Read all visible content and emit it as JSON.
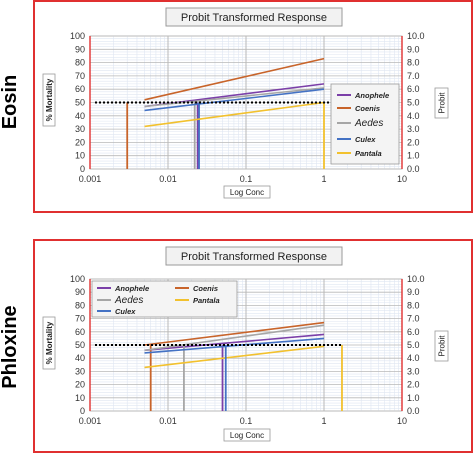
{
  "row_labels": {
    "top": "Eosin",
    "bottom": "Phloxine"
  },
  "chart_data": [
    {
      "type": "line",
      "title": "Probit Transformed Response",
      "xlabel": "Log Conc",
      "ylabel_left": "% Mortality",
      "ylabel_right": "Probit",
      "x_scale": "log",
      "xlim": [
        0.001,
        10
      ],
      "x_ticks": [
        "0.001",
        "0.01",
        "0.1",
        "1",
        "10"
      ],
      "ylim_left": [
        0,
        100
      ],
      "y_ticks_left": [
        "0",
        "10",
        "20",
        "30",
        "40",
        "50",
        "60",
        "70",
        "80",
        "90",
        "100"
      ],
      "ylim_right": [
        0,
        10
      ],
      "y_ticks_right": [
        "0.0",
        "1.0",
        "2.0",
        "3.0",
        "4.0",
        "5.0",
        "6.0",
        "7.0",
        "8.0",
        "9.0",
        "10.0"
      ],
      "grid": true,
      "legend_position": "right",
      "reference_level": 50,
      "series": [
        {
          "name": "Anophele",
          "color": "#7b3fa8",
          "x": [
            0.005,
            1
          ],
          "y": [
            47,
            64
          ],
          "lc50": 0.024
        },
        {
          "name": "Coenis",
          "color": "#c8642a",
          "x": [
            0.005,
            1
          ],
          "y": [
            52,
            83
          ],
          "lc50": 0.003
        },
        {
          "name": "Aedes",
          "color": "#a6a6a6",
          "x": [
            0.005,
            1
          ],
          "y": [
            47,
            61
          ],
          "lc50": 0.022
        },
        {
          "name": "Culex",
          "color": "#4472c4",
          "x": [
            0.005,
            1
          ],
          "y": [
            44,
            60
          ],
          "lc50": 0.025
        },
        {
          "name": "Pantala",
          "color": "#f2c12e",
          "x": [
            0.005,
            1
          ],
          "y": [
            32,
            50
          ],
          "lc50": 1
        }
      ]
    },
    {
      "type": "line",
      "title": "Probit Transformed Response",
      "xlabel": "Log Conc",
      "ylabel_left": "% Mortality",
      "ylabel_right": "Probit",
      "x_scale": "log",
      "xlim": [
        0.001,
        10
      ],
      "x_ticks": [
        "0.001",
        "0.01",
        "0.1",
        "1",
        "10"
      ],
      "ylim_left": [
        0,
        100
      ],
      "y_ticks_left": [
        "0",
        "10",
        "20",
        "30",
        "40",
        "50",
        "60",
        "70",
        "80",
        "90",
        "100"
      ],
      "ylim_right": [
        0,
        10
      ],
      "y_ticks_right": [
        "0.0",
        "1.0",
        "2.0",
        "3.0",
        "4.0",
        "5.0",
        "6.0",
        "7.0",
        "8.0",
        "9.0",
        "10.0"
      ],
      "grid": true,
      "legend_position": "top-left",
      "reference_level": 50,
      "series": [
        {
          "name": "Anophele",
          "color": "#7b3fa8",
          "x": [
            0.005,
            1
          ],
          "y": [
            46,
            58
          ],
          "lc50": 0.05
        },
        {
          "name": "Coenis",
          "color": "#c8642a",
          "x": [
            0.005,
            1
          ],
          "y": [
            50,
            67
          ],
          "lc50": 0.006
        },
        {
          "name": "Aedes",
          "color": "#a6a6a6",
          "x": [
            0.005,
            1
          ],
          "y": [
            46,
            65
          ],
          "lc50": 0.016
        },
        {
          "name": "Pantala",
          "color": "#f2c12e",
          "x": [
            0.005,
            1
          ],
          "y": [
            33,
            49
          ],
          "lc50": 1.7
        },
        {
          "name": "Culex",
          "color": "#4472c4",
          "x": [
            0.005,
            1
          ],
          "y": [
            44,
            55
          ],
          "lc50": 0.055
        }
      ]
    }
  ]
}
